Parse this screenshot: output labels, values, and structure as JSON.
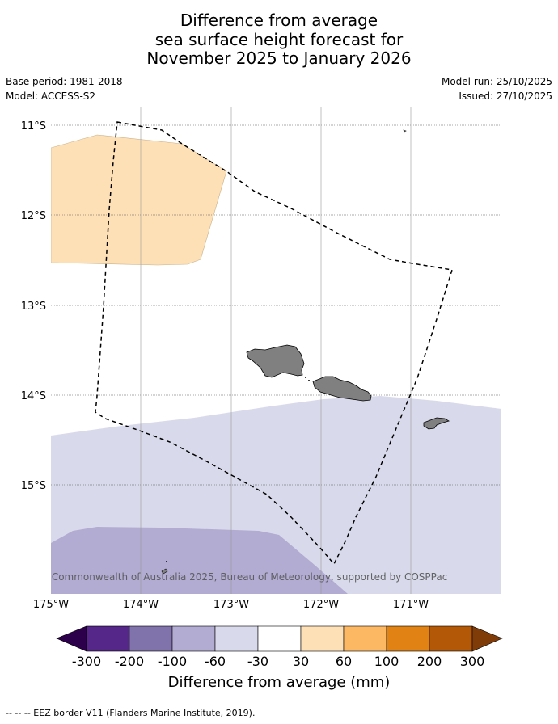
{
  "title": {
    "line1": "Difference from average",
    "line2": "sea surface height forecast for",
    "line3": "November 2025 to January 2026"
  },
  "meta": {
    "base_period": "Base period: 1981-2018",
    "model": "Model: ACCESS-S2",
    "model_run": "Model run: 25/10/2025",
    "issued": "Issued: 27/10/2025"
  },
  "map": {
    "lat_labels": [
      "11°S",
      "12°S",
      "13°S",
      "14°S",
      "15°S"
    ],
    "lon_labels": [
      "175°W",
      "174°W",
      "173°W",
      "172°W",
      "171°W"
    ],
    "copyright": "© Commonwealth of Australia 2025, Bureau of Meteorology, supported by COSPPac",
    "land_color": "#808080",
    "eez_color": "#000000"
  },
  "colorbar": {
    "label": "Difference from average (mm)",
    "ticks": [
      "-300",
      "-200",
      "-100",
      "-60",
      "-30",
      "30",
      "60",
      "100",
      "200",
      "300"
    ],
    "colors": {
      "below": "#2d004b",
      "b1": "#542788",
      "b2": "#8073ac",
      "b3": "#b2abd2",
      "b4": "#d8daeb",
      "b5": "#ffffff",
      "b6": "#fee0b6",
      "b7": "#fdb863",
      "b8": "#e08214",
      "b9": "#b35806",
      "above": "#7f3b08"
    }
  },
  "footer": {
    "text": "--  --  -- EEZ border V11 (Flanders Marine Institute, 2019)."
  }
}
